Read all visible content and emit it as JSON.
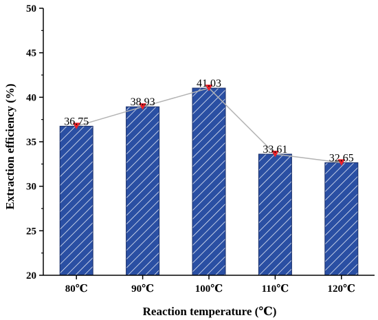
{
  "chart_data": {
    "type": "bar",
    "title": "",
    "xlabel": "Reaction temperature (℃)",
    "ylabel": "Extraction efficiency (%)",
    "categories": [
      "80℃",
      "90℃",
      "100℃",
      "110℃",
      "120℃"
    ],
    "values": [
      36.75,
      38.93,
      41.03,
      33.61,
      32.65
    ],
    "value_labels": [
      "36.75",
      "38.93",
      "41.03",
      "33.61",
      "32.65"
    ],
    "ylim": [
      20,
      50
    ],
    "yticks": [
      20,
      25,
      30,
      35,
      40,
      45,
      50
    ],
    "grid": false,
    "legend": "none",
    "bar_pattern": "diagonal-hatch",
    "overlay": {
      "type": "line",
      "marker": "triangle-down"
    },
    "colors": {
      "bar_fill": "#2a4fa3",
      "bar_hatch": "#ffffff",
      "bar_edge": "#1a2e66",
      "line": "#b3b3b3",
      "marker": "#e8212a"
    }
  }
}
